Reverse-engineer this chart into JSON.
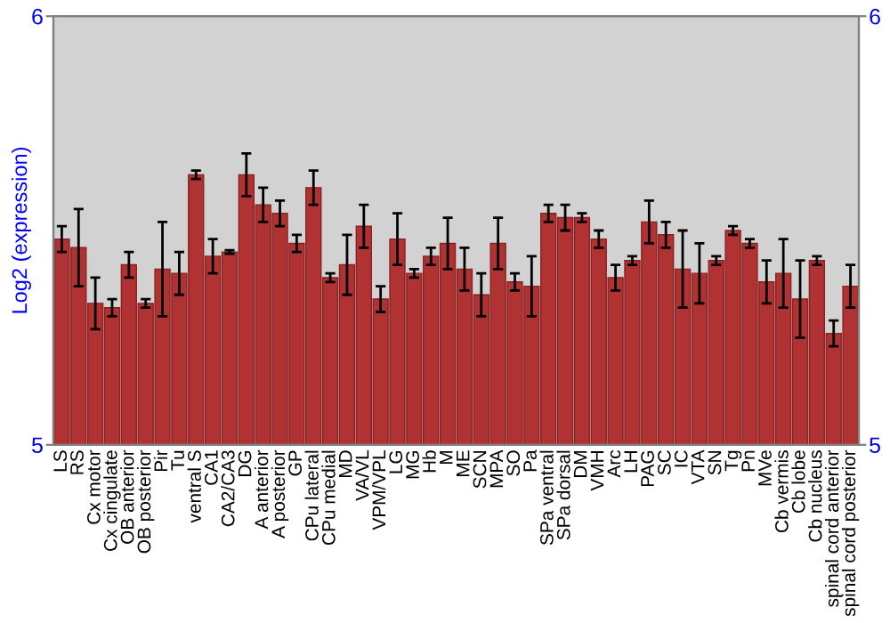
{
  "chart_data": {
    "type": "bar",
    "ylabel": "Log2 (expression)",
    "categories": [
      "LS",
      "RS",
      "Cx motor",
      "Cx cingulate",
      "OB anterior",
      "OB posterior",
      "Pir",
      "Tu",
      "ventral S",
      "CA1",
      "CA2/CA3",
      "DG",
      "A anterior",
      "A posterior",
      "GP",
      "CPu lateral",
      "CPu medial",
      "MD",
      "VA/VL",
      "VPM/VPL",
      "LG",
      "MG",
      "Hb",
      "M",
      "ME",
      "SCN",
      "MPA",
      "SO",
      "Pa",
      "SPa ventral",
      "SPa dorsal",
      "DM",
      "VMH",
      "Arc",
      "LH",
      "PAG",
      "SC",
      "IC",
      "VTA",
      "SN",
      "Tg",
      "Pn",
      "MVe",
      "Cb vermis",
      "Cb lobe",
      "Cb nucleus",
      "spinal cord anterior",
      "spinal cord posterior"
    ],
    "values": [
      5.48,
      5.46,
      5.33,
      5.32,
      5.42,
      5.33,
      5.41,
      5.4,
      5.63,
      5.44,
      5.45,
      5.63,
      5.56,
      5.54,
      5.47,
      5.6,
      5.39,
      5.42,
      5.51,
      5.34,
      5.48,
      5.4,
      5.44,
      5.47,
      5.41,
      5.35,
      5.47,
      5.38,
      5.37,
      5.54,
      5.53,
      5.53,
      5.48,
      5.39,
      5.43,
      5.52,
      5.49,
      5.41,
      5.4,
      5.43,
      5.5,
      5.47,
      5.38,
      5.4,
      5.34,
      5.43,
      5.26,
      5.37
    ],
    "errors": [
      0.03,
      0.09,
      0.06,
      0.02,
      0.03,
      0.01,
      0.11,
      0.05,
      0.01,
      0.04,
      0.004,
      0.05,
      0.04,
      0.03,
      0.02,
      0.04,
      0.01,
      0.07,
      0.05,
      0.03,
      0.06,
      0.01,
      0.02,
      0.06,
      0.05,
      0.05,
      0.06,
      0.02,
      0.07,
      0.02,
      0.03,
      0.01,
      0.02,
      0.03,
      0.01,
      0.05,
      0.03,
      0.09,
      0.07,
      0.01,
      0.01,
      0.01,
      0.05,
      0.08,
      0.09,
      0.01,
      0.03,
      0.05
    ],
    "color": "#b03232",
    "ylim": [
      5,
      6
    ],
    "yticks": [
      5,
      6
    ],
    "y2lim": [
      5,
      6
    ],
    "y2ticks": [
      5,
      6
    ],
    "grid": false,
    "legend": false
  }
}
